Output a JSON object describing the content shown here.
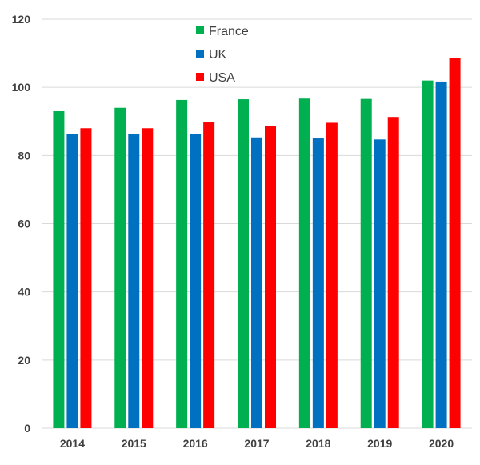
{
  "chart_data": {
    "type": "bar",
    "title": "",
    "xlabel": "",
    "ylabel": "",
    "categories": [
      "2014",
      "2015",
      "2016",
      "2017",
      "2018",
      "2019",
      "2020"
    ],
    "ylim": [
      0,
      120
    ],
    "yticks": [
      0,
      20,
      40,
      60,
      80,
      100,
      120
    ],
    "grid": true,
    "legend_position": "top-center",
    "series": [
      {
        "name": "France",
        "color": "#00b050",
        "values": [
          93.0,
          94.0,
          96.3,
          96.5,
          96.7,
          96.6,
          102.0
        ]
      },
      {
        "name": "UK",
        "color": "#0070c0",
        "values": [
          86.3,
          86.3,
          86.3,
          85.3,
          85.0,
          84.7,
          101.7
        ]
      },
      {
        "name": "USA",
        "color": "#ff0000",
        "values": [
          88.0,
          88.0,
          89.7,
          88.7,
          89.6,
          91.3,
          108.5
        ]
      }
    ]
  }
}
